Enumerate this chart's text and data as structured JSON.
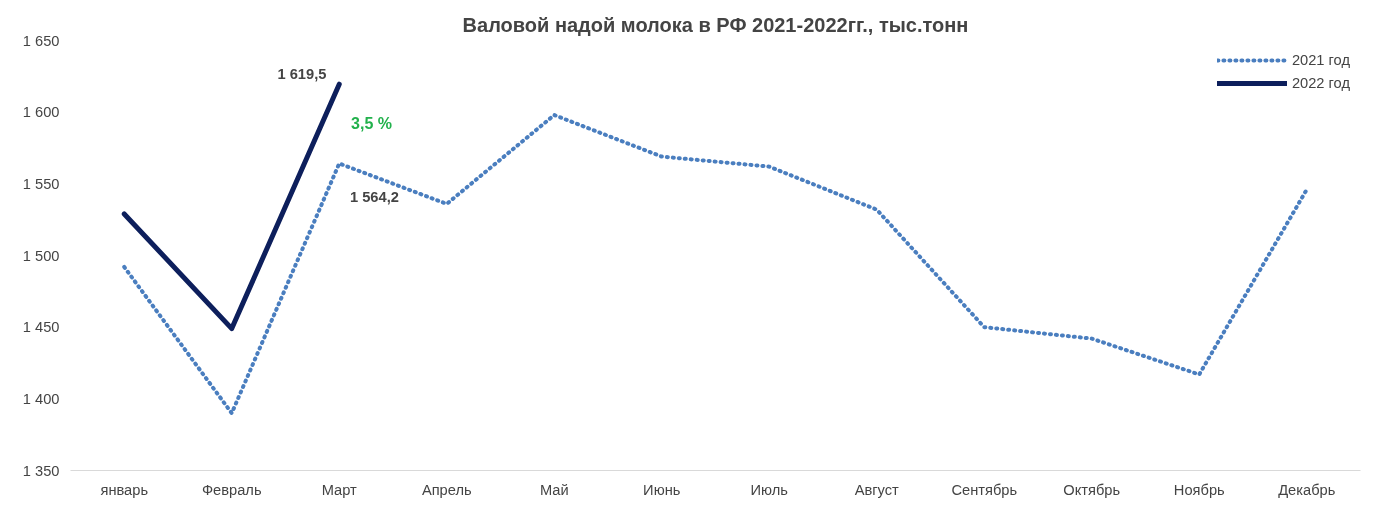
{
  "chart_data": {
    "type": "line",
    "title": "Валовой надой молока в РФ 2021-2022гг., тыс.тонн",
    "categories": [
      "январь",
      "Февраль",
      "Март",
      "Апрель",
      "Май",
      "Июнь",
      "Июль",
      "Август",
      "Сентябрь",
      "Октябрь",
      "Ноябрь",
      "Декабрь"
    ],
    "series": [
      {
        "name": "2021 год",
        "color": "#4a7ebf",
        "line_style": "dotted",
        "values": [
          1492,
          1390,
          1564.2,
          1536,
          1598,
          1569,
          1562,
          1532,
          1450,
          1442,
          1417,
          1546
        ],
        "value_labels": [
          null,
          null,
          "1 564,2",
          null,
          null,
          null,
          null,
          null,
          null,
          null,
          null,
          null
        ]
      },
      {
        "name": "2022 год",
        "color": "#0d1f5c",
        "line_style": "solid",
        "values": [
          1529,
          1449,
          1619.5,
          null,
          null,
          null,
          null,
          null,
          null,
          null,
          null,
          null
        ],
        "value_labels": [
          null,
          null,
          "1 619,5",
          null,
          null,
          null,
          null,
          null,
          null,
          null,
          null,
          null
        ]
      }
    ],
    "ylim": [
      1350,
      1650
    ],
    "yticks": [
      {
        "value": 1350,
        "label": "1 350"
      },
      {
        "value": 1400,
        "label": "1 400"
      },
      {
        "value": 1450,
        "label": "1 450"
      },
      {
        "value": 1500,
        "label": "1 500"
      },
      {
        "value": 1550,
        "label": "1 550"
      },
      {
        "value": 1600,
        "label": "1 600"
      },
      {
        "value": 1650,
        "label": "1 650"
      }
    ],
    "annotations": [
      "3,5 %"
    ],
    "grid": false,
    "legend": "top right",
    "marker": "none"
  }
}
